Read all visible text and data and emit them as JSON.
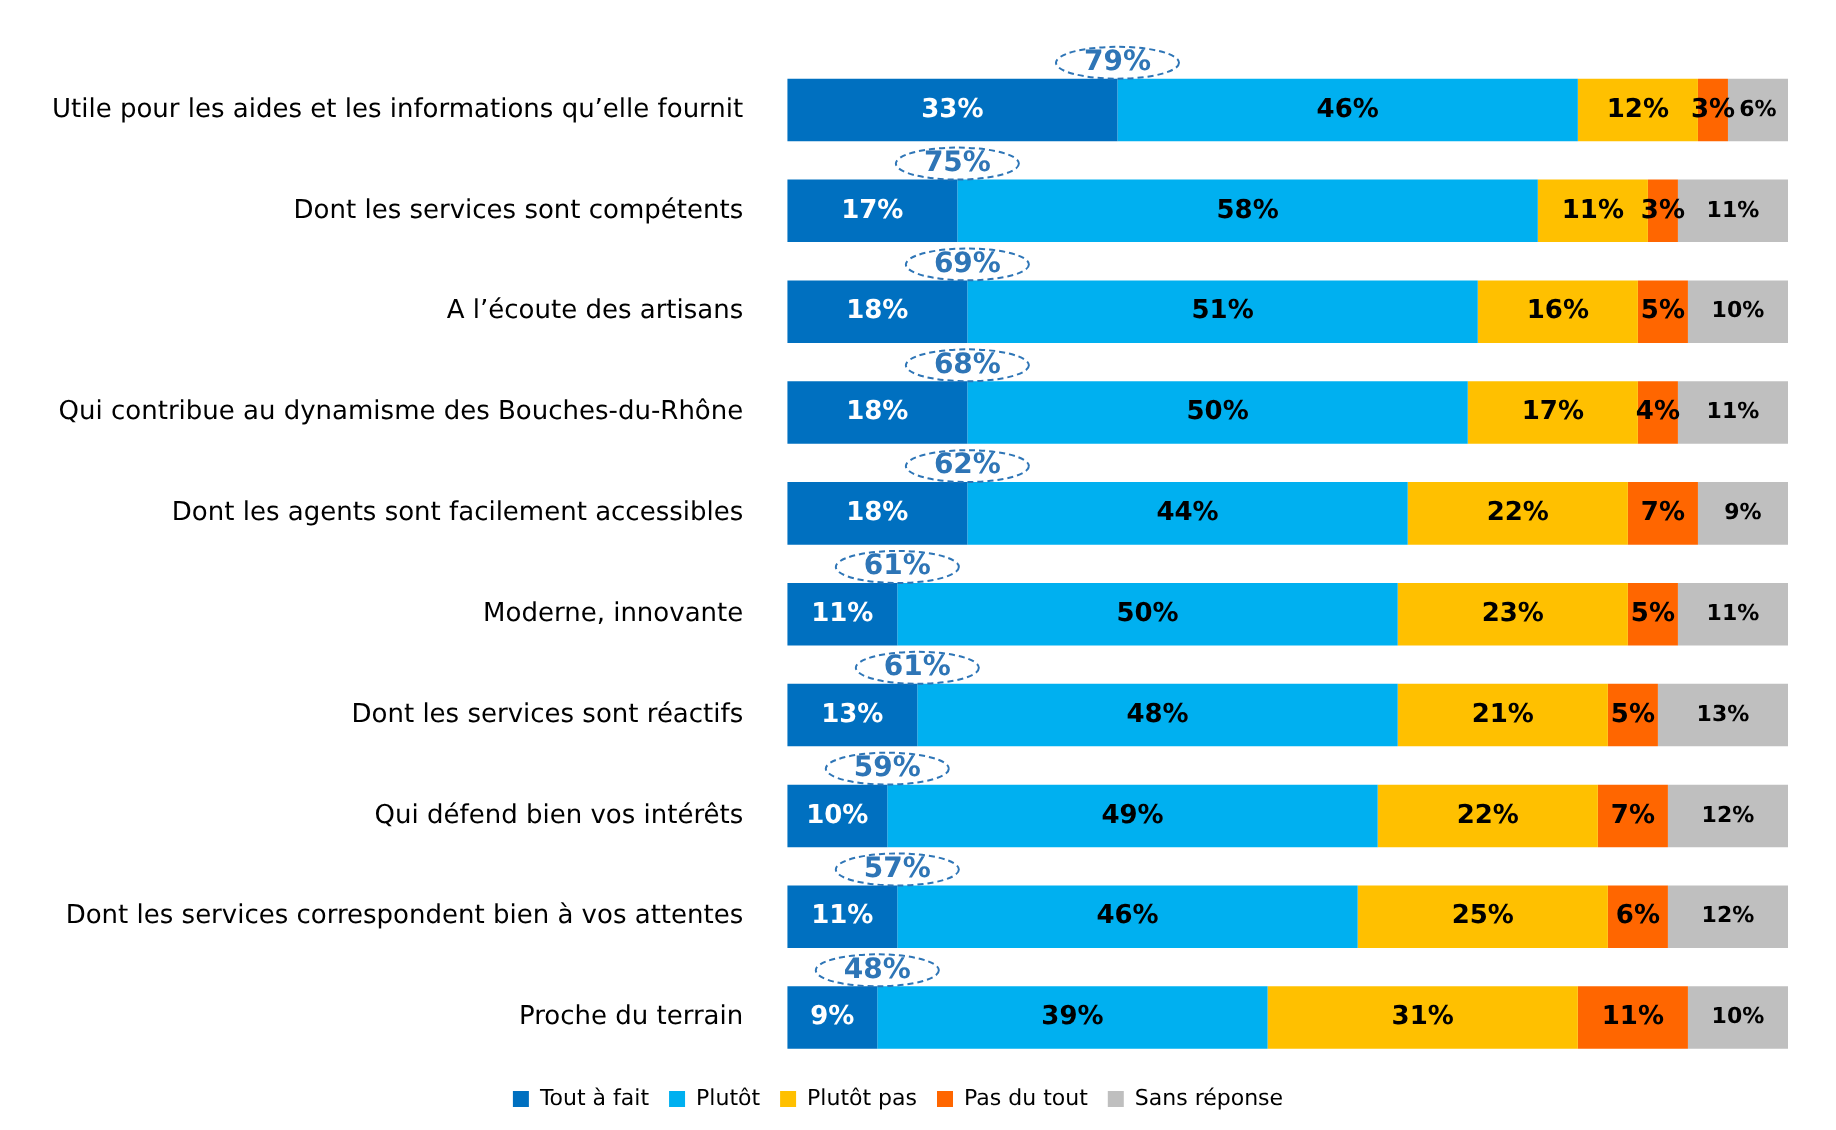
{
  "chart_data": {
    "type": "bar",
    "orientation": "horizontal",
    "stacked": true,
    "categories": [
      "Utile pour les aides et les informations qu’elle fournit",
      "Dont les services sont compétents",
      "A l’écoute des artisans",
      "Qui contribue au dynamisme des Bouches-du-Rhône",
      "Dont les agents sont facilement accessibles",
      "Moderne, innovante",
      "Dont les services sont réactifs",
      "Qui défend bien vos intérêts",
      "Dont les services correspondent bien à vos attentes",
      "Proche du terrain"
    ],
    "series": [
      {
        "name": "Tout à fait",
        "color": "#0070c0",
        "values": [
          33,
          17,
          18,
          18,
          18,
          11,
          13,
          10,
          11,
          9
        ],
        "value_labels": [
          "33%",
          "17%",
          "18%",
          "18%",
          "18%",
          "11%",
          "13%",
          "10%",
          "11%",
          "9%"
        ]
      },
      {
        "name": "Plutôt",
        "color": "#00b0f0",
        "values": [
          46,
          58,
          51,
          50,
          44,
          50,
          48,
          49,
          46,
          39
        ],
        "value_labels": [
          "46%",
          "58%",
          "51%",
          "50%",
          "44%",
          "50%",
          "48%",
          "49%",
          "46%",
          "39%"
        ]
      },
      {
        "name": "Plutôt pas",
        "color": "#ffc000",
        "values": [
          12,
          11,
          16,
          17,
          22,
          23,
          21,
          22,
          25,
          31
        ],
        "value_labels": [
          "12%",
          "11%",
          "16%",
          "17%",
          "22%",
          "23%",
          "21%",
          "22%",
          "25%",
          "31%"
        ]
      },
      {
        "name": "Pas du tout",
        "color": "#ff6600",
        "values": [
          3,
          3,
          5,
          4,
          7,
          5,
          5,
          7,
          6,
          11
        ],
        "value_labels": [
          "3%",
          "3%",
          "5%",
          "4%",
          "7%",
          "5%",
          "5%",
          "7%",
          "6%",
          "11%"
        ]
      },
      {
        "name": "Sans réponse",
        "color": "#bfbfbf",
        "values": [
          6,
          11,
          10,
          11,
          9,
          11,
          13,
          12,
          12,
          10
        ],
        "value_labels": [
          "6%",
          "11%",
          "10%",
          "11%",
          "9%",
          "11%",
          "13%",
          "12%",
          "12%",
          "10%"
        ]
      }
    ],
    "annotations": [
      {
        "text": "79%",
        "x": 33,
        "y": "Utile pour les aides et les informations qu’elle fournit"
      },
      {
        "text": "75%",
        "x": 17,
        "y": "Dont les services sont compétents"
      },
      {
        "text": "69%",
        "x": 18,
        "y": "A l’écoute des artisans"
      },
      {
        "text": "68%",
        "x": 18,
        "y": "Qui contribue au dynamisme des Bouches-du-Rhône"
      },
      {
        "text": "62%",
        "x": 18,
        "y": "Dont les agents sont facilement accessibles"
      },
      {
        "text": "61%",
        "x": 11,
        "y": "Moderne, innovante"
      },
      {
        "text": "61%",
        "x": 13,
        "y": "Dont les services sont réactifs"
      },
      {
        "text": "59%",
        "x": 10,
        "y": "Qui défend bien vos intérêts"
      },
      {
        "text": "57%",
        "x": 11,
        "y": "Dont les services correspondent bien à vos attentes"
      },
      {
        "text": "48%",
        "x": 9,
        "y": "Proche du terrain"
      }
    ],
    "xlim": [
      0,
      100
    ],
    "tick_labels": "y",
    "legend": "bottom"
  }
}
